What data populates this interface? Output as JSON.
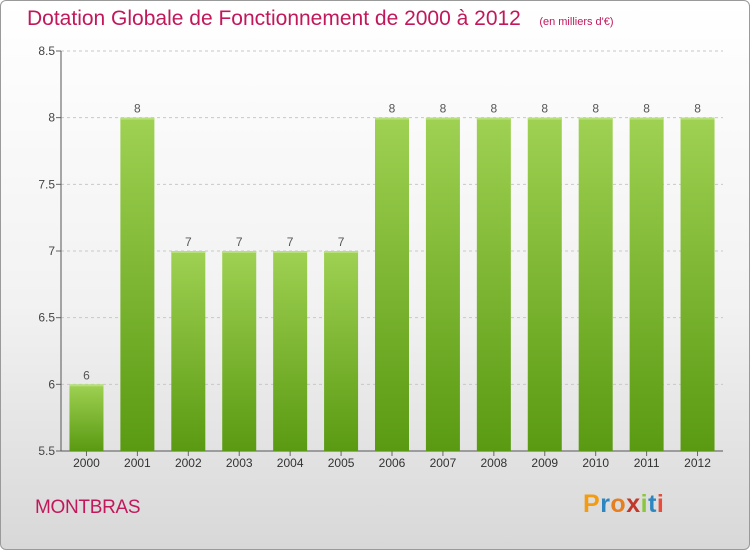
{
  "header": {
    "title": "Dotation Globale de Fonctionnement de 2000 à 2012",
    "subtitle": "(en milliers d'€)"
  },
  "footer": {
    "commune": "MONTBRAS",
    "logo_text": "Proxiti",
    "logo_colors": [
      "#f39c12",
      "#2e86c1",
      "#e67e22",
      "#c0392b",
      "#8cc63f",
      "#2e86c1",
      "#e74c3c"
    ]
  },
  "colors": {
    "bar_top": "#9fd152",
    "bar_bottom": "#5a9a12",
    "title": "#c2185b"
  },
  "chart_data": {
    "type": "bar",
    "title": "Dotation Globale de Fonctionnement de 2000 à 2012",
    "subtitle": "(en milliers d'€)",
    "categories": [
      "2000",
      "2001",
      "2002",
      "2003",
      "2004",
      "2005",
      "2006",
      "2007",
      "2008",
      "2009",
      "2010",
      "2011",
      "2012"
    ],
    "values": [
      6,
      8,
      7,
      7,
      7,
      7,
      8,
      8,
      8,
      8,
      8,
      8,
      8
    ],
    "data_labels": [
      "6",
      "8",
      "7",
      "7",
      "7",
      "7",
      "8",
      "8",
      "8",
      "8",
      "8",
      "8",
      "8"
    ],
    "yticks": [
      5.5,
      6,
      6.5,
      7,
      7.5,
      8,
      8.5
    ],
    "ytick_labels": [
      "5.5",
      "6",
      "6.5",
      "7",
      "7.5",
      "8",
      "8.5"
    ],
    "ylim": [
      5.5,
      8.5
    ],
    "grid": true,
    "legend": "none"
  }
}
